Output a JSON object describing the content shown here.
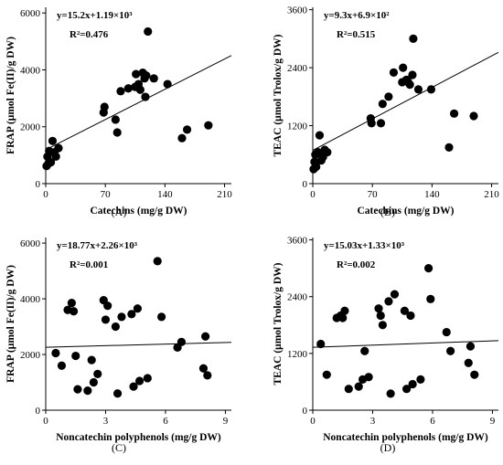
{
  "chart_data": [
    {
      "type": "scatter",
      "panel": "(A)",
      "xlabel": "Catechins (mg/g DW)",
      "ylabel": "FRAP (μmol Fe(II)/g DW)",
      "xticks": [
        "0",
        "70",
        "140",
        "210"
      ],
      "yticks": [
        "0",
        "2000",
        "4000",
        "6000"
      ],
      "xlim": [
        0,
        218
      ],
      "ylim": [
        0,
        6200
      ],
      "equation": "y=15.2x+1.19×10³",
      "r2": "R²=0.476",
      "fit": {
        "slope": 15.2,
        "intercept": 1190
      },
      "points": [
        [
          1,
          620
        ],
        [
          2,
          950
        ],
        [
          3,
          700
        ],
        [
          4,
          1150
        ],
        [
          8,
          1500
        ],
        [
          10,
          1100
        ],
        [
          12,
          950
        ],
        [
          15,
          1250
        ],
        [
          6,
          750
        ],
        [
          68,
          2500
        ],
        [
          69,
          2700
        ],
        [
          82,
          2250
        ],
        [
          84,
          1800
        ],
        [
          88,
          3250
        ],
        [
          97,
          3350
        ],
        [
          105,
          3400
        ],
        [
          106,
          3850
        ],
        [
          109,
          3500
        ],
        [
          111,
          3300
        ],
        [
          114,
          3900
        ],
        [
          116,
          3700
        ],
        [
          117,
          3050
        ],
        [
          118,
          3800
        ],
        [
          120,
          5350
        ],
        [
          127,
          3700
        ],
        [
          143,
          3500
        ],
        [
          160,
          1600
        ],
        [
          166,
          1900
        ],
        [
          191,
          2050
        ]
      ]
    },
    {
      "type": "scatter",
      "panel": "(B)",
      "xlabel": "Catechins (mg/g DW)",
      "ylabel": "TEAC (μmol Trolox/g DW)",
      "xticks": [
        "0",
        "70",
        "140",
        "210"
      ],
      "yticks": [
        "0",
        "1200",
        "2400",
        "3600"
      ],
      "xlim": [
        0,
        218
      ],
      "ylim": [
        0,
        3650
      ],
      "equation": "y=9.3x+6.9×10²",
      "r2": "R²=0.515",
      "fit": {
        "slope": 9.3,
        "intercept": 690
      },
      "points": [
        [
          1,
          300
        ],
        [
          2,
          450
        ],
        [
          3,
          600
        ],
        [
          4,
          350
        ],
        [
          6,
          650
        ],
        [
          8,
          1000
        ],
        [
          10,
          480
        ],
        [
          12,
          550
        ],
        [
          14,
          700
        ],
        [
          17,
          650
        ],
        [
          68,
          1350
        ],
        [
          69,
          1250
        ],
        [
          80,
          1250
        ],
        [
          82,
          1650
        ],
        [
          89,
          1800
        ],
        [
          95,
          2300
        ],
        [
          105,
          2100
        ],
        [
          106,
          2400
        ],
        [
          110,
          2150
        ],
        [
          112,
          2100
        ],
        [
          114,
          2050
        ],
        [
          117,
          2250
        ],
        [
          118,
          3000
        ],
        [
          124,
          1950
        ],
        [
          139,
          1950
        ],
        [
          160,
          750
        ],
        [
          166,
          1450
        ],
        [
          189,
          1400
        ]
      ]
    },
    {
      "type": "scatter",
      "panel": "(C)",
      "xlabel": "Noncatechin polyphenols (mg/g DW)",
      "ylabel": "FRAP (μmol Fe(II)/g DW)",
      "xticks": [
        "0",
        "3",
        "6",
        "9"
      ],
      "yticks": [
        "0",
        "2000",
        "4000",
        "6000"
      ],
      "xlim": [
        0,
        9.3
      ],
      "ylim": [
        0,
        6200
      ],
      "equation": "y=18.77x+2.26×10³",
      "r2": "R²=0.001",
      "fit": {
        "slope": 18.77,
        "intercept": 2260
      },
      "points": [
        [
          0.5,
          2050
        ],
        [
          0.8,
          1600
        ],
        [
          1.1,
          3600
        ],
        [
          1.3,
          3850
        ],
        [
          1.4,
          3550
        ],
        [
          1.5,
          1950
        ],
        [
          1.6,
          750
        ],
        [
          2.1,
          700
        ],
        [
          2.3,
          1800
        ],
        [
          2.4,
          1000
        ],
        [
          2.6,
          1300
        ],
        [
          2.9,
          3950
        ],
        [
          3.0,
          3250
        ],
        [
          3.1,
          3750
        ],
        [
          3.5,
          3000
        ],
        [
          3.6,
          600
        ],
        [
          3.8,
          3350
        ],
        [
          4.3,
          3450
        ],
        [
          4.4,
          850
        ],
        [
          4.6,
          3650
        ],
        [
          4.7,
          1050
        ],
        [
          5.1,
          1150
        ],
        [
          5.6,
          5350
        ],
        [
          5.8,
          3350
        ],
        [
          6.6,
          2250
        ],
        [
          6.8,
          2450
        ],
        [
          7.9,
          1500
        ],
        [
          8.0,
          2650
        ],
        [
          8.1,
          1250
        ]
      ]
    },
    {
      "type": "scatter",
      "panel": "(D)",
      "xlabel": "Noncatechin polyphenols (mg/g DW)",
      "ylabel": "TEAC (μmol Trolox/g DW)",
      "xticks": [
        "0",
        "3",
        "6",
        "9"
      ],
      "yticks": [
        "0",
        "1200",
        "2400",
        "3600"
      ],
      "xlim": [
        0,
        9.3
      ],
      "ylim": [
        0,
        3650
      ],
      "equation": "y=15.03x+1.33×10³",
      "r2": "R²=0.002",
      "fit": {
        "slope": 15.03,
        "intercept": 1330
      },
      "points": [
        [
          0.4,
          1400
        ],
        [
          0.7,
          750
        ],
        [
          1.2,
          1950
        ],
        [
          1.4,
          2000
        ],
        [
          1.5,
          1950
        ],
        [
          1.6,
          2100
        ],
        [
          1.8,
          450
        ],
        [
          2.3,
          500
        ],
        [
          2.5,
          650
        ],
        [
          2.6,
          1250
        ],
        [
          2.8,
          700
        ],
        [
          3.3,
          2150
        ],
        [
          3.4,
          2000
        ],
        [
          3.5,
          1800
        ],
        [
          3.8,
          2300
        ],
        [
          3.9,
          350
        ],
        [
          4.1,
          2450
        ],
        [
          4.6,
          2100
        ],
        [
          4.7,
          450
        ],
        [
          4.9,
          2000
        ],
        [
          5.0,
          550
        ],
        [
          5.4,
          650
        ],
        [
          5.8,
          3000
        ],
        [
          5.9,
          2350
        ],
        [
          6.7,
          1650
        ],
        [
          6.9,
          1250
        ],
        [
          7.8,
          1000
        ],
        [
          7.9,
          1350
        ],
        [
          8.1,
          750
        ]
      ]
    }
  ]
}
